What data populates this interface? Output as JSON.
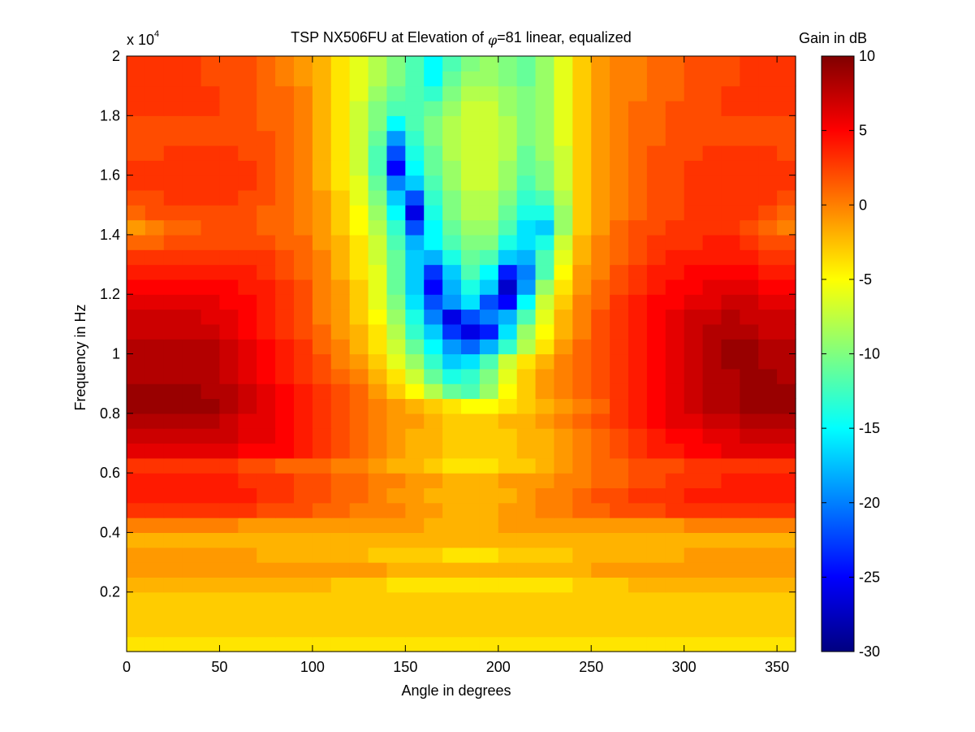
{
  "chart_data": {
    "type": "heatmap",
    "title_prefix": "TSP NX506FU at Elevation of ",
    "title_phi": "φ",
    "title_suffix": "=81 linear, equalized",
    "xlabel": "Angle in degrees",
    "ylabel": "Frequency in Hz",
    "xlim": [
      0,
      360
    ],
    "ylim": [
      0,
      20000
    ],
    "x_ticks": [
      0,
      50,
      100,
      150,
      200,
      250,
      300,
      350
    ],
    "y_ticks": [
      2000,
      4000,
      6000,
      8000,
      10000,
      12000,
      14000,
      16000,
      18000,
      20000
    ],
    "y_tick_labels": [
      "0.2",
      "0.4",
      "0.6",
      "0.8",
      "1",
      "1.2",
      "1.4",
      "1.6",
      "1.8",
      "2"
    ],
    "y_exponent_label": "x 10",
    "y_exponent_power": "4",
    "colorbar": {
      "label": "Gain in dB",
      "range": [
        -30,
        10
      ],
      "ticks": [
        10,
        5,
        0,
        -5,
        -10,
        -15,
        -20,
        -25,
        -30
      ],
      "colormap": "jet"
    },
    "angle_bins": [
      0,
      10,
      20,
      30,
      40,
      50,
      60,
      70,
      80,
      90,
      100,
      110,
      120,
      130,
      140,
      150,
      160,
      170,
      180,
      190,
      200,
      210,
      220,
      230,
      240,
      250,
      260,
      270,
      280,
      290,
      300,
      310,
      320,
      330,
      340,
      350,
      360
    ],
    "freq_bins": [
      0,
      500,
      1000,
      1500,
      2000,
      2500,
      3000,
      3500,
      4000,
      4500,
      5000,
      5500,
      6000,
      6500,
      7000,
      7500,
      8000,
      8500,
      9000,
      9500,
      10000,
      10500,
      11000,
      11500,
      12000,
      12500,
      13000,
      13500,
      14000,
      14500,
      15000,
      15500,
      16000,
      16500,
      17000,
      17500,
      18000,
      18500,
      19000,
      19500,
      20000
    ],
    "gain_db": [
      [
        -4,
        -4,
        -4,
        -4,
        -4,
        -4,
        -4,
        -4,
        -4,
        -4,
        -4,
        -4,
        -4,
        -4,
        -4,
        -4,
        -4,
        -4,
        -4,
        -4,
        -4,
        -4,
        -4,
        -4,
        -4,
        -4,
        -4,
        -4,
        -4,
        -4,
        -4,
        -4,
        -4,
        -4,
        -4,
        -4
      ],
      [
        -3,
        -3,
        -3,
        -3,
        -3,
        -3,
        -3,
        -3,
        -3,
        -3,
        -3,
        -3,
        -3,
        -3,
        -3,
        -3,
        -3,
        -3,
        -3,
        -3,
        -3,
        -3,
        -3,
        -3,
        -3,
        -3,
        -3,
        -3,
        -3,
        -3,
        -3,
        -3,
        -3,
        -3,
        -3,
        -3
      ],
      [
        -3,
        -3,
        -3,
        -3,
        -3,
        -3,
        -3,
        -3,
        -3,
        -3,
        -3,
        -3,
        -3,
        -3,
        -3,
        -3,
        -3,
        -3,
        -3,
        -3,
        -3,
        -3,
        -3,
        -3,
        -3,
        -3,
        -3,
        -3,
        -3,
        -3,
        -3,
        -3,
        -3,
        -3,
        -3,
        -3
      ],
      [
        -3,
        -3,
        -3,
        -3,
        -3,
        -3,
        -3,
        -3,
        -3,
        -3,
        -3,
        -3,
        -3,
        -3,
        -3,
        -3,
        -3,
        -3,
        -3,
        -3,
        -3,
        -3,
        -3,
        -3,
        -3,
        -3,
        -3,
        -3,
        -3,
        -3,
        -3,
        -3,
        -3,
        -3,
        -3,
        -3
      ],
      [
        -2,
        -2,
        -2,
        -2,
        -2,
        -2,
        -2,
        -2,
        -2,
        -2,
        -2,
        -3,
        -3,
        -3,
        -4,
        -4,
        -4,
        -4,
        -4,
        -4,
        -4,
        -4,
        -4,
        -4,
        -3,
        -3,
        -3,
        -2,
        -2,
        -2,
        -2,
        -2,
        -2,
        -2,
        -2,
        -2
      ],
      [
        -1,
        -1,
        -1,
        -1,
        -1,
        -1,
        -1,
        -1,
        -1,
        -1,
        -1,
        -1,
        -1,
        -1,
        -2,
        -2,
        -2,
        -2,
        -2,
        -2,
        -2,
        -2,
        -2,
        -2,
        -2,
        -1,
        -1,
        -1,
        -1,
        -1,
        -1,
        -1,
        -1,
        -1,
        -1,
        -1
      ],
      [
        -1,
        -1,
        -1,
        -1,
        -1,
        -1,
        -1,
        -2,
        -2,
        -2,
        -2,
        -2,
        -2,
        -3,
        -3,
        -3,
        -3,
        -4,
        -4,
        -4,
        -3,
        -3,
        -3,
        -3,
        -2,
        -2,
        -2,
        -2,
        -2,
        -2,
        -1,
        -1,
        -1,
        -1,
        -1,
        -1
      ],
      [
        -2,
        -2,
        -2,
        -2,
        -2,
        -2,
        -2,
        -2,
        -2,
        -2,
        -2,
        -2,
        -2,
        -2,
        -2,
        -2,
        -2,
        -2,
        -2,
        -2,
        -2,
        -2,
        -2,
        -2,
        -2,
        -2,
        -2,
        -2,
        -2,
        -2,
        -2,
        -2,
        -2,
        -2,
        -2,
        -2
      ],
      [
        0,
        0,
        0,
        0,
        0,
        0,
        -1,
        -1,
        -1,
        -1,
        -1,
        -1,
        -1,
        -1,
        -1,
        -1,
        -2,
        -2,
        -2,
        -2,
        -1,
        -1,
        -1,
        -1,
        -1,
        -1,
        -1,
        -1,
        -1,
        -1,
        0,
        0,
        0,
        0,
        0,
        0
      ],
      [
        3,
        3,
        3,
        3,
        3,
        3,
        3,
        2,
        2,
        2,
        1,
        1,
        0,
        0,
        0,
        -1,
        -1,
        -2,
        -2,
        -2,
        -1,
        -1,
        0,
        0,
        1,
        1,
        2,
        2,
        2,
        3,
        3,
        3,
        3,
        3,
        3,
        3
      ],
      [
        4,
        4,
        4,
        4,
        4,
        4,
        4,
        3,
        3,
        2,
        2,
        1,
        1,
        0,
        -1,
        -1,
        -2,
        -2,
        -2,
        -2,
        -2,
        -1,
        0,
        0,
        1,
        2,
        2,
        3,
        3,
        3,
        4,
        4,
        4,
        4,
        4,
        4
      ],
      [
        4,
        4,
        4,
        4,
        4,
        4,
        3,
        3,
        3,
        2,
        2,
        1,
        1,
        0,
        0,
        -1,
        -1,
        -2,
        -2,
        -2,
        -1,
        -1,
        -1,
        0,
        0,
        1,
        1,
        2,
        2,
        3,
        3,
        3,
        4,
        4,
        4,
        4
      ],
      [
        3,
        3,
        3,
        3,
        3,
        3,
        2,
        2,
        1,
        1,
        1,
        0,
        0,
        -1,
        -2,
        -2,
        -3,
        -4,
        -4,
        -4,
        -3,
        -3,
        -2,
        -1,
        0,
        1,
        1,
        2,
        2,
        2,
        3,
        3,
        3,
        3,
        3,
        3
      ],
      [
        6,
        6,
        6,
        6,
        6,
        6,
        5,
        5,
        5,
        4,
        3,
        2,
        1,
        0,
        -1,
        -2,
        -2,
        -3,
        -3,
        -3,
        -3,
        -2,
        -2,
        -1,
        0,
        1,
        2,
        3,
        4,
        4,
        5,
        5,
        6,
        6,
        6,
        6
      ],
      [
        7,
        7,
        7,
        7,
        7,
        7,
        6,
        6,
        5,
        4,
        3,
        2,
        1,
        0,
        -1,
        -2,
        -2,
        -3,
        -3,
        -3,
        -3,
        -2,
        -2,
        -1,
        0,
        1,
        2,
        3,
        4,
        5,
        5,
        6,
        6,
        7,
        7,
        7
      ],
      [
        8,
        8,
        8,
        8,
        8,
        7,
        6,
        6,
        5,
        4,
        3,
        2,
        1,
        0,
        -1,
        -1,
        -2,
        -3,
        -3,
        -3,
        -2,
        -2,
        -1,
        0,
        1,
        2,
        3,
        4,
        5,
        6,
        6,
        7,
        7,
        8,
        8,
        8
      ],
      [
        9,
        9,
        9,
        9,
        9,
        8,
        7,
        6,
        5,
        4,
        3,
        2,
        1,
        0,
        -1,
        -2,
        -3,
        -4,
        -5,
        -5,
        -4,
        -3,
        -2,
        -1,
        0,
        1,
        3,
        4,
        5,
        6,
        7,
        8,
        8,
        9,
        9,
        9
      ],
      [
        9,
        9,
        9,
        9,
        8,
        8,
        7,
        6,
        5,
        4,
        3,
        2,
        1,
        -1,
        -3,
        -5,
        -8,
        -11,
        -12,
        -9,
        -5,
        -3,
        -1,
        0,
        1,
        2,
        3,
        4,
        5,
        6,
        7,
        8,
        8,
        9,
        9,
        9
      ],
      [
        8,
        8,
        8,
        8,
        8,
        7,
        6,
        5,
        4,
        3,
        2,
        1,
        0,
        -2,
        -4,
        -7,
        -11,
        -14,
        -13,
        -10,
        -6,
        -3,
        -1,
        0,
        1,
        2,
        3,
        4,
        5,
        6,
        7,
        8,
        8,
        9,
        9,
        8
      ],
      [
        8,
        8,
        8,
        8,
        8,
        7,
        6,
        5,
        4,
        3,
        2,
        0,
        -1,
        -3,
        -6,
        -9,
        -13,
        -17,
        -16,
        -12,
        -7,
        -4,
        -2,
        0,
        1,
        2,
        3,
        4,
        5,
        6,
        7,
        8,
        9,
        9,
        8,
        8
      ],
      [
        8,
        8,
        8,
        8,
        8,
        7,
        6,
        5,
        4,
        3,
        1,
        0,
        -2,
        -4,
        -7,
        -11,
        -15,
        -19,
        -21,
        -18,
        -13,
        -8,
        -4,
        -1,
        1,
        2,
        3,
        4,
        5,
        6,
        7,
        8,
        9,
        9,
        8,
        8
      ],
      [
        7,
        7,
        7,
        7,
        7,
        6,
        5,
        4,
        3,
        2,
        1,
        -1,
        -2,
        -4,
        -8,
        -13,
        -17,
        -23,
        -26,
        -24,
        -16,
        -9,
        -5,
        -2,
        0,
        2,
        3,
        4,
        5,
        6,
        7,
        8,
        8,
        8,
        7,
        7
      ],
      [
        7,
        7,
        7,
        7,
        6,
        6,
        5,
        4,
        3,
        2,
        0,
        -1,
        -3,
        -5,
        -9,
        -14,
        -20,
        -26,
        -22,
        -20,
        -18,
        -12,
        -6,
        -2,
        0,
        2,
        3,
        4,
        5,
        6,
        7,
        7,
        8,
        7,
        7,
        7
      ],
      [
        6,
        6,
        6,
        6,
        6,
        5,
        5,
        4,
        3,
        2,
        0,
        -1,
        -3,
        -6,
        -10,
        -16,
        -22,
        -19,
        -16,
        -22,
        -25,
        -15,
        -7,
        -3,
        0,
        1,
        3,
        4,
        5,
        5,
        6,
        6,
        7,
        7,
        6,
        6
      ],
      [
        5,
        5,
        5,
        5,
        5,
        5,
        4,
        4,
        3,
        2,
        0,
        -1,
        -3,
        -6,
        -11,
        -17,
        -25,
        -18,
        -14,
        -17,
        -27,
        -19,
        -9,
        -4,
        -1,
        1,
        2,
        3,
        4,
        5,
        5,
        6,
        6,
        6,
        5,
        5
      ],
      [
        4,
        4,
        4,
        4,
        4,
        4,
        4,
        3,
        2,
        1,
        0,
        -2,
        -4,
        -6,
        -11,
        -17,
        -23,
        -17,
        -12,
        -15,
        -24,
        -20,
        -12,
        -5,
        -1,
        0,
        2,
        3,
        4,
        4,
        5,
        5,
        5,
        5,
        4,
        4
      ],
      [
        3,
        3,
        3,
        3,
        3,
        3,
        3,
        3,
        2,
        1,
        0,
        -2,
        -4,
        -7,
        -11,
        -17,
        -18,
        -14,
        -11,
        -12,
        -17,
        -18,
        -12,
        -6,
        -2,
        0,
        1,
        2,
        3,
        4,
        4,
        4,
        4,
        4,
        3,
        3
      ],
      [
        1,
        1,
        2,
        2,
        2,
        2,
        2,
        2,
        1,
        1,
        -1,
        -2,
        -4,
        -7,
        -12,
        -18,
        -15,
        -12,
        -10,
        -10,
        -14,
        -16,
        -14,
        -7,
        -2,
        0,
        1,
        2,
        3,
        3,
        3,
        4,
        4,
        3,
        2,
        2
      ],
      [
        -1,
        0,
        1,
        1,
        2,
        2,
        2,
        1,
        1,
        0,
        -1,
        -3,
        -5,
        -8,
        -13,
        -22,
        -15,
        -11,
        -9,
        -9,
        -12,
        -16,
        -17,
        -9,
        -3,
        -1,
        1,
        2,
        2,
        3,
        3,
        3,
        3,
        2,
        1,
        0
      ],
      [
        1,
        2,
        2,
        2,
        2,
        2,
        2,
        1,
        1,
        0,
        -1,
        -3,
        -5,
        -9,
        -15,
        -26,
        -14,
        -10,
        -8,
        -8,
        -11,
        -14,
        -14,
        -9,
        -3,
        -1,
        0,
        1,
        2,
        2,
        3,
        3,
        3,
        3,
        2,
        1
      ],
      [
        2,
        2,
        3,
        3,
        3,
        3,
        2,
        2,
        1,
        0,
        -1,
        -3,
        -6,
        -10,
        -17,
        -22,
        -13,
        -10,
        -8,
        -8,
        -10,
        -13,
        -12,
        -8,
        -3,
        -1,
        0,
        1,
        2,
        2,
        3,
        3,
        3,
        3,
        3,
        2
      ],
      [
        3,
        3,
        3,
        3,
        3,
        3,
        3,
        2,
        1,
        0,
        -2,
        -4,
        -6,
        -11,
        -20,
        -17,
        -12,
        -9,
        -7,
        -7,
        -9,
        -12,
        -10,
        -7,
        -3,
        -1,
        0,
        1,
        2,
        2,
        3,
        3,
        3,
        3,
        3,
        3
      ],
      [
        3,
        3,
        3,
        3,
        3,
        3,
        3,
        2,
        1,
        0,
        -2,
        -4,
        -7,
        -12,
        -25,
        -15,
        -11,
        -9,
        -7,
        -7,
        -9,
        -11,
        -10,
        -7,
        -3,
        -1,
        0,
        1,
        2,
        2,
        3,
        3,
        3,
        3,
        3,
        3
      ],
      [
        2,
        2,
        3,
        3,
        3,
        3,
        2,
        2,
        1,
        0,
        -2,
        -4,
        -7,
        -12,
        -22,
        -14,
        -11,
        -8,
        -7,
        -7,
        -8,
        -11,
        -9,
        -7,
        -3,
        -1,
        0,
        1,
        2,
        2,
        2,
        3,
        3,
        3,
        3,
        2
      ],
      [
        2,
        2,
        2,
        2,
        2,
        2,
        2,
        2,
        1,
        0,
        -2,
        -4,
        -7,
        -11,
        -19,
        -13,
        -10,
        -8,
        -7,
        -7,
        -8,
        -10,
        -9,
        -6,
        -3,
        -1,
        0,
        1,
        1,
        2,
        2,
        2,
        2,
        2,
        2,
        2
      ],
      [
        2,
        2,
        2,
        2,
        2,
        2,
        2,
        1,
        1,
        0,
        -2,
        -4,
        -7,
        -10,
        -15,
        -12,
        -10,
        -8,
        -7,
        -7,
        -8,
        -10,
        -9,
        -6,
        -3,
        -1,
        0,
        1,
        1,
        2,
        2,
        2,
        2,
        2,
        2,
        2
      ],
      [
        3,
        3,
        3,
        3,
        3,
        2,
        2,
        1,
        1,
        0,
        -2,
        -4,
        -7,
        -10,
        -12,
        -12,
        -11,
        -9,
        -7,
        -7,
        -9,
        -10,
        -9,
        -6,
        -3,
        -1,
        0,
        1,
        1,
        2,
        2,
        2,
        3,
        3,
        3,
        3
      ],
      [
        3,
        3,
        3,
        3,
        3,
        2,
        2,
        1,
        1,
        0,
        -2,
        -4,
        -6,
        -9,
        -11,
        -12,
        -13,
        -10,
        -8,
        -8,
        -9,
        -10,
        -9,
        -6,
        -3,
        -1,
        0,
        0,
        1,
        1,
        2,
        2,
        3,
        3,
        3,
        3
      ],
      [
        3,
        3,
        3,
        3,
        2,
        2,
        2,
        1,
        0,
        -1,
        -2,
        -4,
        -6,
        -8,
        -10,
        -12,
        -15,
        -11,
        -9,
        -9,
        -10,
        -11,
        -9,
        -6,
        -3,
        -1,
        0,
        0,
        1,
        1,
        2,
        2,
        2,
        3,
        3,
        3
      ],
      [
        3,
        3,
        3,
        3,
        2,
        2,
        2,
        1,
        0,
        -1,
        -2,
        -4,
        -6,
        -8,
        -10,
        -12,
        -15,
        -12,
        -10,
        -9,
        -10,
        -11,
        -9,
        -6,
        -3,
        -1,
        0,
        0,
        1,
        1,
        2,
        2,
        2,
        3,
        3,
        3
      ]
    ]
  }
}
